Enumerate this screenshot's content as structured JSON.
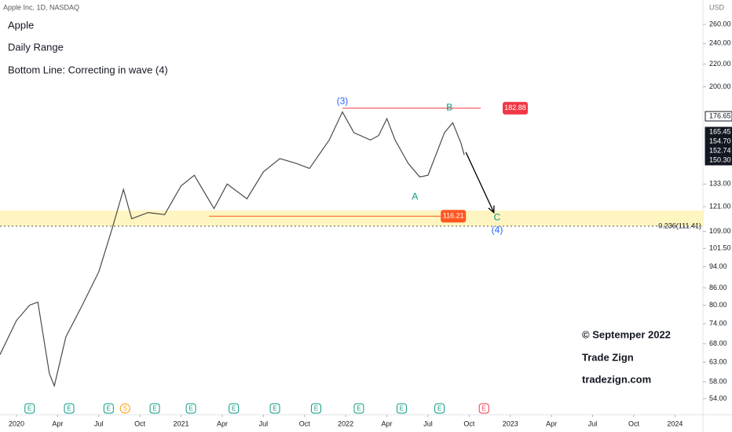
{
  "chart_data": {
    "type": "line",
    "title": "Apple Inc, 1D, NASDAQ",
    "notes": [
      "Apple",
      "Daily Range",
      "Bottom Line: Correcting in wave (4)"
    ],
    "credits": [
      "© Septemper 2022",
      "Trade Zign",
      "tradezign.com"
    ],
    "currency": "USD",
    "log_scale": true,
    "grid": false,
    "color": "#4a4a4a",
    "x": [
      2019.9,
      2020.0,
      2020.08,
      2020.13,
      2020.2,
      2020.23,
      2020.3,
      2020.4,
      2020.5,
      2020.58,
      2020.65,
      2020.7,
      2020.8,
      2020.9,
      2021.0,
      2021.08,
      2021.2,
      2021.28,
      2021.4,
      2021.5,
      2021.6,
      2021.7,
      2021.78,
      2021.9,
      2021.98,
      2022.05,
      2022.15,
      2022.2,
      2022.25,
      2022.3,
      2022.38,
      2022.45,
      2022.5,
      2022.6,
      2022.65,
      2022.7,
      2022.72
    ],
    "values": [
      65,
      75,
      80,
      81,
      60,
      57,
      70,
      80,
      92,
      110,
      130,
      115,
      118,
      117,
      132,
      138,
      120,
      133,
      125,
      140,
      148,
      145,
      142,
      160,
      180,
      165,
      160,
      163,
      175,
      160,
      145,
      137,
      138,
      165,
      172,
      158,
      150.3
    ],
    "xlim": [
      2019.9,
      2024.17
    ],
    "ylim": [
      51,
      288
    ],
    "xticks": [
      {
        "value": 2020,
        "label": "2020"
      },
      {
        "value": 2020.25,
        "label": "Apr"
      },
      {
        "value": 2020.5,
        "label": "Jul"
      },
      {
        "value": 2020.75,
        "label": "Oct"
      },
      {
        "value": 2021,
        "label": "2021"
      },
      {
        "value": 2021.25,
        "label": "Apr"
      },
      {
        "value": 2021.5,
        "label": "Jul"
      },
      {
        "value": 2021.75,
        "label": "Oct"
      },
      {
        "value": 2022,
        "label": "2022"
      },
      {
        "value": 2022.25,
        "label": "Apr"
      },
      {
        "value": 2022.5,
        "label": "Jul"
      },
      {
        "value": 2022.75,
        "label": "Oct"
      },
      {
        "value": 2023,
        "label": "2023"
      },
      {
        "value": 2023.25,
        "label": "Apr"
      },
      {
        "value": 2023.5,
        "label": "Jul"
      },
      {
        "value": 2023.75,
        "label": "Oct"
      },
      {
        "value": 2024,
        "label": "2024"
      }
    ],
    "yticks": [
      {
        "value": 260,
        "label": "260.00"
      },
      {
        "value": 240,
        "label": "240.00"
      },
      {
        "value": 220,
        "label": "220.00"
      },
      {
        "value": 200,
        "label": "200.00"
      },
      {
        "value": 133,
        "label": "133.00"
      },
      {
        "value": 121,
        "label": "121.00"
      },
      {
        "value": 109,
        "label": "109.00"
      },
      {
        "value": 101.5,
        "label": "101.50"
      },
      {
        "value": 94,
        "label": "94.00"
      },
      {
        "value": 86,
        "label": "86.00"
      },
      {
        "value": 80,
        "label": "80.00"
      },
      {
        "value": 74,
        "label": "74.00"
      },
      {
        "value": 68,
        "label": "68.00"
      },
      {
        "value": 63,
        "label": "63.00"
      },
      {
        "value": 58,
        "label": "58.00"
      },
      {
        "value": 54,
        "label": "54.00"
      }
    ],
    "price_labels": [
      176.65,
      165.45,
      {
        "value": 154.7,
        "label": "154.70"
      },
      152.74,
      {
        "value": 150.3,
        "label": "150.30"
      }
    ],
    "levels": [
      {
        "value": 182.88,
        "from": 2021.98,
        "to": 2022.82,
        "color": "#f23645"
      },
      {
        "value": 116.21,
        "from": 2021.17,
        "to": 2022.73,
        "color": "#ff5722"
      }
    ],
    "fib_level": {
      "value": 111.41,
      "label": "0.236(111.41)"
    },
    "zone": [
      111.41,
      119
    ],
    "arrow": {
      "x": [
        2022.73,
        2022.9
      ],
      "y": [
        152,
        118
      ]
    },
    "annotations": [
      {
        "text": "(3)",
        "x": 2021.98,
        "y": 188,
        "color": "#2962ff"
      },
      {
        "text": "B",
        "x": 2022.63,
        "y": 183,
        "color": "#089981"
      },
      {
        "text": "A",
        "x": 2022.42,
        "y": 126,
        "color": "#089981"
      },
      {
        "text": "C",
        "x": 2022.92,
        "y": 115.5,
        "color": "#089981"
      },
      {
        "text": "(4)",
        "x": 2022.92,
        "y": 109.5,
        "color": "#2962ff"
      }
    ],
    "events": [
      {
        "x": 2020.08,
        "label": "E"
      },
      {
        "x": 2020.32,
        "label": "E"
      },
      {
        "x": 2020.56,
        "label": "E"
      },
      {
        "x": 2020.66,
        "label": "S"
      },
      {
        "x": 2020.84,
        "label": "E"
      },
      {
        "x": 2021.06,
        "label": "E"
      },
      {
        "x": 2021.32,
        "label": "E"
      },
      {
        "x": 2021.57,
        "label": "E"
      },
      {
        "x": 2021.82,
        "label": "E"
      },
      {
        "x": 2022.08,
        "label": "E"
      },
      {
        "x": 2022.34,
        "label": "E"
      },
      {
        "x": 2022.57,
        "label": "E"
      },
      {
        "x": 2022.84,
        "label": "E"
      }
    ]
  }
}
